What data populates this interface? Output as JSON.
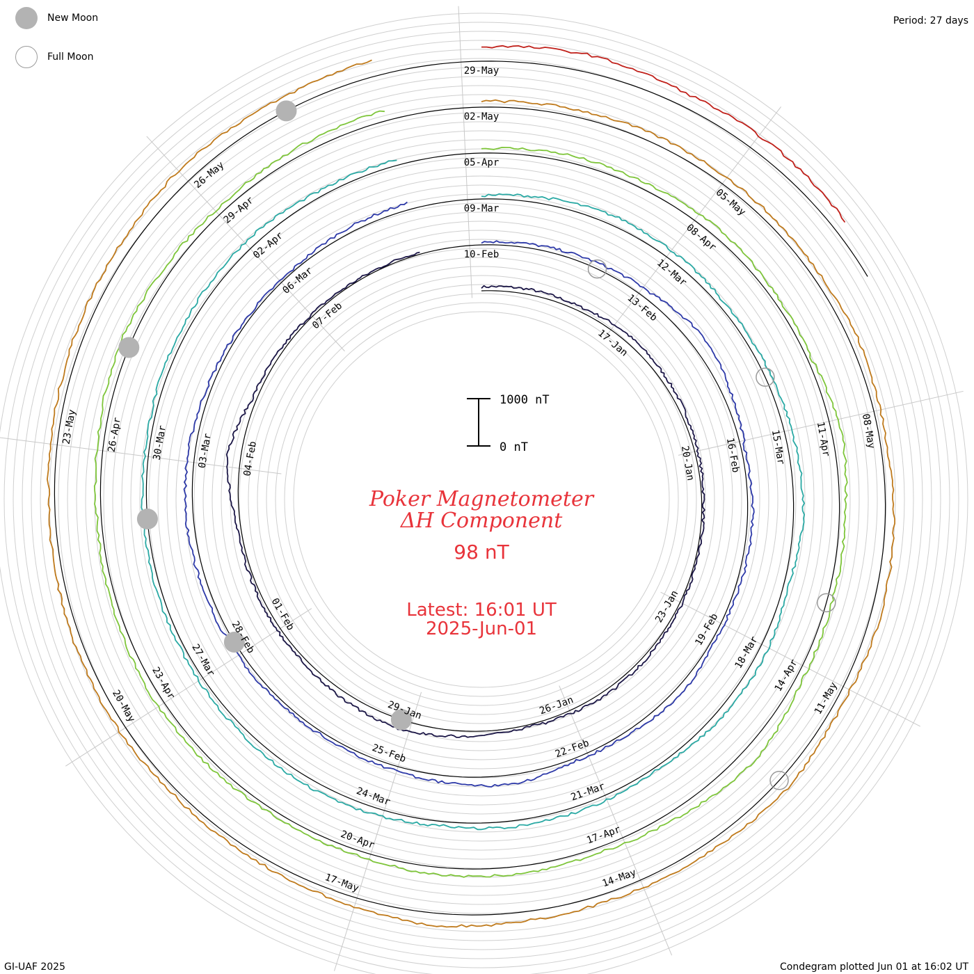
{
  "legend": {
    "new_moon": "New Moon",
    "full_moon": "Full Moon"
  },
  "header": {
    "period": "Period: 27 days"
  },
  "footer": {
    "credit": "GI-UAF 2025",
    "plotted": "Condegram plotted Jun 01 at 16:02 UT"
  },
  "center": {
    "title_line1": "Poker Magnetometer",
    "title_line2": "ΔH Component",
    "current_value": "98 nT",
    "latest_label": "Latest: 16:01 UT",
    "latest_date": "2025-Jun-01"
  },
  "scale_bar": {
    "top_label": "1000 nT",
    "bottom_label": "0 nT"
  },
  "colors": {
    "title_red": "#e8333a",
    "grid": "#c8c8c8",
    "moon": "#b3b3b3"
  },
  "chart_data": {
    "type": "line",
    "layout": "spiral condegram",
    "period_days": 27,
    "unit": "nT",
    "scale_bar_nT": [
      0,
      1000
    ],
    "series": [
      {
        "start": "2025-01-14",
        "color": "#1b1646",
        "date_labels": [
          "17-Jan",
          "20-Jan",
          "23-Jan",
          "26-Jan",
          "29-Jan",
          "01-Feb",
          "04-Feb",
          "07-Feb",
          "10-Feb"
        ],
        "values": [
          80,
          110,
          90,
          140,
          120,
          95,
          60,
          40,
          30,
          50,
          70,
          90,
          60,
          45,
          120,
          200,
          150,
          80,
          70,
          60,
          90,
          310,
          90,
          60,
          40,
          30,
          50
        ]
      },
      {
        "start": "2025-02-10",
        "color": "#2d39a8",
        "date_labels": [
          "13-Feb",
          "16-Feb",
          "19-Feb",
          "22-Feb",
          "25-Feb",
          "28-Feb",
          "03-Mar",
          "06-Mar",
          "09-Mar"
        ],
        "values": [
          60,
          90,
          120,
          160,
          300,
          180,
          70,
          110,
          90,
          60,
          150,
          80,
          60,
          210,
          150,
          90,
          60,
          80,
          95,
          120,
          160,
          140,
          90,
          60,
          40,
          110,
          140
        ]
      },
      {
        "start": "2025-03-09",
        "color": "#2aa9a4",
        "date_labels": [
          "12-Mar",
          "15-Mar",
          "18-Mar",
          "21-Mar",
          "24-Mar",
          "27-Mar",
          "30-Mar",
          "02-Apr",
          "05-Apr"
        ],
        "values": [
          70,
          140,
          200,
          160,
          110,
          130,
          170,
          210,
          90,
          180,
          140,
          60,
          110,
          130,
          90,
          150,
          160,
          120,
          90,
          100,
          90,
          80,
          120,
          150,
          180,
          110,
          130
        ]
      },
      {
        "start": "2025-04-05",
        "color": "#7ec53a",
        "date_labels": [
          "08-Apr",
          "11-Apr",
          "14-Apr",
          "17-Apr",
          "20-Apr",
          "23-Apr",
          "26-Apr",
          "29-Apr",
          "02-May"
        ],
        "values": [
          90,
          150,
          130,
          180,
          120,
          80,
          210,
          120,
          110,
          140,
          320,
          190,
          110,
          160,
          150,
          110,
          90,
          130,
          150,
          110,
          90,
          140,
          210,
          150,
          120,
          180,
          220
        ]
      },
      {
        "start": "2025-05-02",
        "color": "#bf7a1c",
        "date_labels": [
          "05-May",
          "08-May",
          "11-May",
          "14-May",
          "17-May",
          "20-May",
          "23-May",
          "26-May",
          "29-May"
        ],
        "values": [
          120,
          150,
          170,
          160,
          140,
          180,
          130,
          180,
          220,
          150,
          240,
          180,
          160,
          190,
          260,
          170,
          130,
          110,
          160,
          150,
          130,
          140,
          190,
          240,
          310,
          280,
          350
        ]
      },
      {
        "start": "2025-05-29",
        "color": "#c0201a",
        "date_labels": [],
        "values": [
          300,
          370,
          280,
          320,
          280
        ]
      }
    ],
    "new_moons": [
      "2025-01-29",
      "2025-02-28",
      "2025-03-29",
      "2025-04-27",
      "2025-05-27"
    ],
    "full_moons": [
      "2025-02-12",
      "2025-03-14",
      "2025-04-13",
      "2025-05-12"
    ]
  }
}
